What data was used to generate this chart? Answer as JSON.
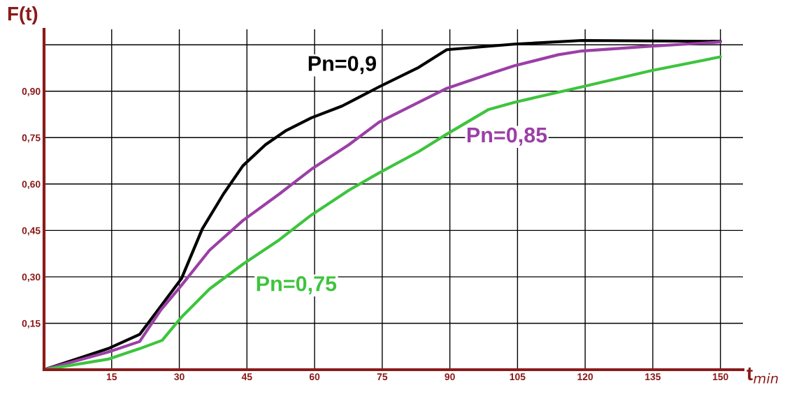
{
  "chart_data": {
    "type": "line",
    "xlabel": "t$_{min}$",
    "ylabel": "F(t)",
    "xlim": [
      0,
      155
    ],
    "ylim": [
      0,
      1.1
    ],
    "xticks": [
      {
        "value": 0,
        "label": null
      },
      15,
      30,
      45,
      60,
      75,
      90,
      105,
      120,
      135,
      150
    ],
    "yticks": [
      {
        "value": 0,
        "label": null
      },
      {
        "value": 0.15,
        "label": "0,15"
      },
      {
        "value": 0.3,
        "label": "0,30"
      },
      {
        "value": 0.45,
        "label": "0,45"
      },
      {
        "value": 0.6,
        "label": "0,60"
      },
      {
        "value": 0.75,
        "label": "0,75"
      },
      {
        "value": 0.9,
        "label": "0,90"
      },
      {
        "value": 1.05,
        "label": null
      }
    ],
    "grid": true,
    "marker": "none",
    "line_style": "solid",
    "series": [
      {
        "name": "Pn=0,9",
        "color": "#000000",
        "x": [
          0,
          14.2,
          21.2,
          25.9,
          30.5,
          35.1,
          39.8,
          44.1,
          49.1,
          53.7,
          59.3,
          66.1,
          74.3,
          83.1,
          89.3,
          104.3,
          119.3,
          150
        ],
        "values": [
          0,
          0.068,
          0.114,
          0.205,
          0.295,
          0.455,
          0.568,
          0.659,
          0.727,
          0.773,
          0.814,
          0.852,
          0.914,
          0.977,
          1.034,
          1.052,
          1.064,
          1.061
        ]
      },
      {
        "name": "Pn=0,85",
        "color": "#9b3fa6",
        "x": [
          0,
          14.2,
          21.2,
          25.9,
          30.5,
          36.7,
          44.1,
          52.2,
          59.3,
          67.6,
          74.3,
          83.1,
          89.3,
          98.6,
          104.3,
          114.1,
          119.3,
          134.2,
          150
        ],
        "values": [
          0,
          0.057,
          0.091,
          0.193,
          0.273,
          0.386,
          0.482,
          0.568,
          0.648,
          0.727,
          0.8,
          0.864,
          0.909,
          0.955,
          0.982,
          1.018,
          1.03,
          1.045,
          1.059
        ]
      },
      {
        "name": "Pn=0,75",
        "color": "#3ec43e",
        "x": [
          0,
          14.2,
          21.2,
          26.2,
          30.5,
          36.7,
          44.1,
          52.2,
          59.3,
          67.6,
          74.3,
          83.1,
          89.3,
          98.6,
          104.3,
          119.3,
          134.5,
          150
        ],
        "values": [
          0,
          0.034,
          0.068,
          0.095,
          0.17,
          0.261,
          0.341,
          0.42,
          0.5,
          0.58,
          0.636,
          0.705,
          0.761,
          0.841,
          0.864,
          0.914,
          0.966,
          1.011
        ]
      }
    ]
  }
}
